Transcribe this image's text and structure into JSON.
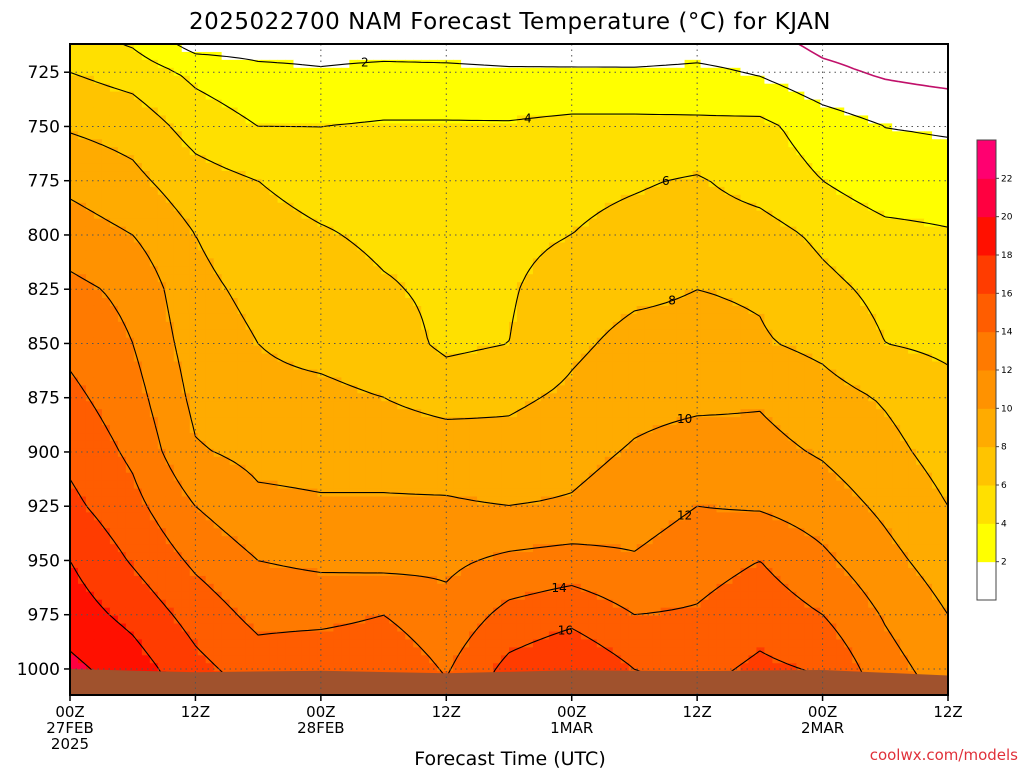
{
  "chart_data": {
    "type": "heatmap",
    "title": "2025022700 NAM Forecast Temperature (°C) for KJAN",
    "xlabel": "Forecast Time (UTC)",
    "credit": "coolwx.com/models",
    "y_axis": {
      "label": "",
      "ticks": [
        725,
        750,
        775,
        800,
        825,
        850,
        875,
        900,
        925,
        950,
        975,
        1000
      ],
      "range": [
        712,
        1012
      ],
      "direction": "pressure-down"
    },
    "x_axis": {
      "range_hours": [
        0,
        84
      ],
      "ticks": [
        {
          "hour": 0,
          "line1": "00Z",
          "line2": "27FEB",
          "line3": "2025"
        },
        {
          "hour": 12,
          "line1": "12Z",
          "line2": "",
          "line3": ""
        },
        {
          "hour": 24,
          "line1": "00Z",
          "line2": "28FEB",
          "line3": ""
        },
        {
          "hour": 36,
          "line1": "12Z",
          "line2": "",
          "line3": ""
        },
        {
          "hour": 48,
          "line1": "00Z",
          "line2": "1MAR",
          "line3": ""
        },
        {
          "hour": 60,
          "line1": "12Z",
          "line2": "",
          "line3": ""
        },
        {
          "hour": 72,
          "line1": "00Z",
          "line2": "2MAR",
          "line3": ""
        },
        {
          "hour": 84,
          "line1": "12Z",
          "line2": "",
          "line3": ""
        }
      ]
    },
    "colorbar": {
      "levels": [
        0,
        2,
        4,
        6,
        8,
        10,
        12,
        14,
        16,
        18,
        20,
        22,
        24
      ],
      "labels": [
        "2",
        "4",
        "6",
        "8",
        "10",
        "12",
        "14",
        "16",
        "18",
        "20",
        "22"
      ],
      "colors": [
        "#ffffff",
        "#ffff00",
        "#ffe000",
        "#ffc400",
        "#ffab00",
        "#ff9200",
        "#ff7a00",
        "#ff5d00",
        "#ff3c00",
        "#ff1000",
        "#ff0040",
        "#ff0070"
      ]
    },
    "field": {
      "note_units": "degC",
      "hours": [
        0,
        6,
        12,
        18,
        24,
        30,
        36,
        42,
        48,
        54,
        60,
        66,
        72,
        78,
        84
      ],
      "pressures": [
        712,
        725,
        750,
        775,
        800,
        825,
        850,
        875,
        900,
        925,
        950,
        975,
        1000,
        1012
      ],
      "temps": [
        [
          5.0,
          3.8,
          1.2,
          1.2,
          1.2,
          1.2,
          1.0,
          0.8,
          0.7,
          0.6,
          1.0,
          0.8,
          -0.5,
          -1.0,
          -1.5
        ],
        [
          6.0,
          5.2,
          3.5,
          2.5,
          2.2,
          2.5,
          2.5,
          2.3,
          2.3,
          2.3,
          2.5,
          1.8,
          0.5,
          -0.3,
          -0.8
        ],
        [
          7.8,
          7.2,
          5.2,
          4.0,
          4.0,
          4.2,
          4.2,
          4.2,
          4.5,
          4.5,
          4.4,
          4.5,
          3.0,
          2.0,
          1.8
        ],
        [
          9.5,
          8.5,
          6.8,
          6.0,
          5.2,
          5.2,
          5.4,
          5.2,
          5.5,
          5.8,
          6.2,
          5.2,
          4.0,
          2.8,
          2.8
        ],
        [
          11.0,
          10.0,
          8.0,
          6.8,
          6.2,
          5.6,
          5.5,
          5.5,
          6.0,
          6.6,
          7.0,
          6.8,
          5.6,
          4.6,
          4.2
        ],
        [
          12.5,
          11.5,
          8.5,
          7.5,
          7.0,
          6.2,
          5.6,
          5.8,
          7.0,
          7.6,
          8.0,
          7.8,
          6.5,
          5.5,
          5.0
        ],
        [
          13.5,
          12.0,
          9.0,
          8.0,
          7.5,
          7.0,
          5.6,
          6.0,
          7.6,
          8.6,
          8.6,
          8.2,
          7.5,
          6.0,
          5.6
        ],
        [
          14.5,
          12.8,
          9.5,
          8.4,
          8.4,
          8.0,
          7.2,
          7.6,
          8.4,
          9.4,
          9.6,
          9.8,
          8.8,
          7.8,
          6.6
        ],
        [
          15.5,
          13.6,
          10.2,
          9.5,
          9.4,
          9.4,
          9.2,
          8.8,
          9.4,
          10.2,
          10.8,
          10.6,
          9.8,
          8.6,
          7.2
        ],
        [
          16.5,
          14.6,
          12.0,
          10.4,
          10.2,
          10.2,
          10.2,
          10.0,
          10.2,
          11.0,
          12.0,
          11.8,
          11.0,
          9.6,
          8.0
        ],
        [
          18.0,
          15.8,
          13.6,
          12.0,
          11.6,
          11.4,
          11.6,
          12.4,
          12.8,
          12.2,
          13.2,
          14.0,
          12.4,
          10.6,
          9.0
        ],
        [
          19.0,
          17.4,
          15.2,
          13.4,
          13.4,
          14.0,
          12.6,
          14.6,
          15.4,
          14.0,
          14.2,
          15.2,
          14.0,
          11.8,
          10.0
        ],
        [
          20.5,
          19.0,
          16.6,
          15.0,
          15.6,
          15.6,
          13.8,
          16.6,
          17.8,
          16.0,
          15.4,
          16.4,
          15.8,
          12.8,
          11.0
        ],
        [
          21.0,
          19.6,
          17.2,
          15.8,
          16.2,
          16.2,
          14.4,
          17.2,
          18.4,
          16.6,
          16.0,
          17.0,
          16.4,
          13.4,
          11.4
        ]
      ]
    }
  }
}
